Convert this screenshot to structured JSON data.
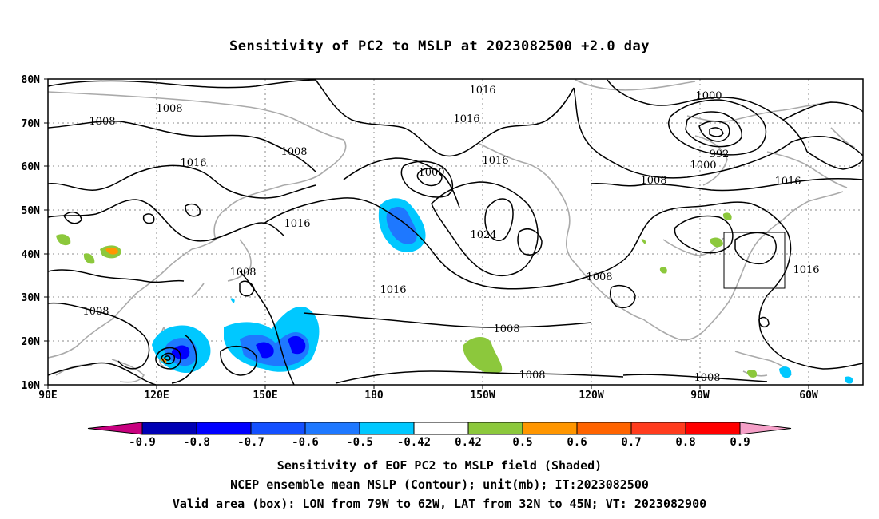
{
  "title": "Sensitivity of PC2 to MSLP at 2023082500 +2.0 day",
  "map": {
    "lat_ticks": [
      "80N",
      "70N",
      "60N",
      "50N",
      "40N",
      "30N",
      "20N",
      "10N"
    ],
    "lon_ticks": [
      "90E",
      "120E",
      "150E",
      "180",
      "150W",
      "120W",
      "90W",
      "60W"
    ],
    "contour_labels": [
      {
        "text": "1016"
      },
      {
        "text": "1008"
      },
      {
        "text": "1008"
      },
      {
        "text": "1008"
      },
      {
        "text": "1016"
      },
      {
        "text": "1000"
      },
      {
        "text": "1016"
      },
      {
        "text": "1000"
      },
      {
        "text": "992"
      },
      {
        "text": "1000"
      },
      {
        "text": "1008"
      },
      {
        "text": "1016"
      },
      {
        "text": "1016"
      },
      {
        "text": "1024"
      },
      {
        "text": "1016"
      },
      {
        "text": "1008"
      },
      {
        "text": "1008"
      },
      {
        "text": "1016"
      },
      {
        "text": "1016"
      },
      {
        "text": "1008"
      },
      {
        "text": "1008"
      },
      {
        "text": "1008"
      }
    ],
    "colors": {
      "land": "#aaaaaa",
      "contour": "#000000",
      "grid": "#888888"
    }
  },
  "colorbar": {
    "labels": [
      "-0.9",
      "-0.8",
      "-0.7",
      "-0.6",
      "-0.5",
      "-0.42",
      "0.42",
      "0.5",
      "0.6",
      "0.7",
      "0.8",
      "0.9"
    ],
    "colors": [
      "#0000b4",
      "#0000ff",
      "#1450ff",
      "#1e78ff",
      "#00c8ff",
      "#ffffff",
      "#8cc83c",
      "#ff9600",
      "#ff6400",
      "#ff3c1e",
      "#ff0000"
    ],
    "end_low": "#c8007f",
    "end_high": "#f5a0c8"
  },
  "footer": [
    "Sensitivity of EOF PC2 to MSLP field (Shaded)",
    "NCEP ensemble mean MSLP (Contour); unit(mb); IT:2023082500",
    "Valid area (box): LON from 79W to 62W, LAT from 32N to 45N; VT: 2023082900"
  ]
}
